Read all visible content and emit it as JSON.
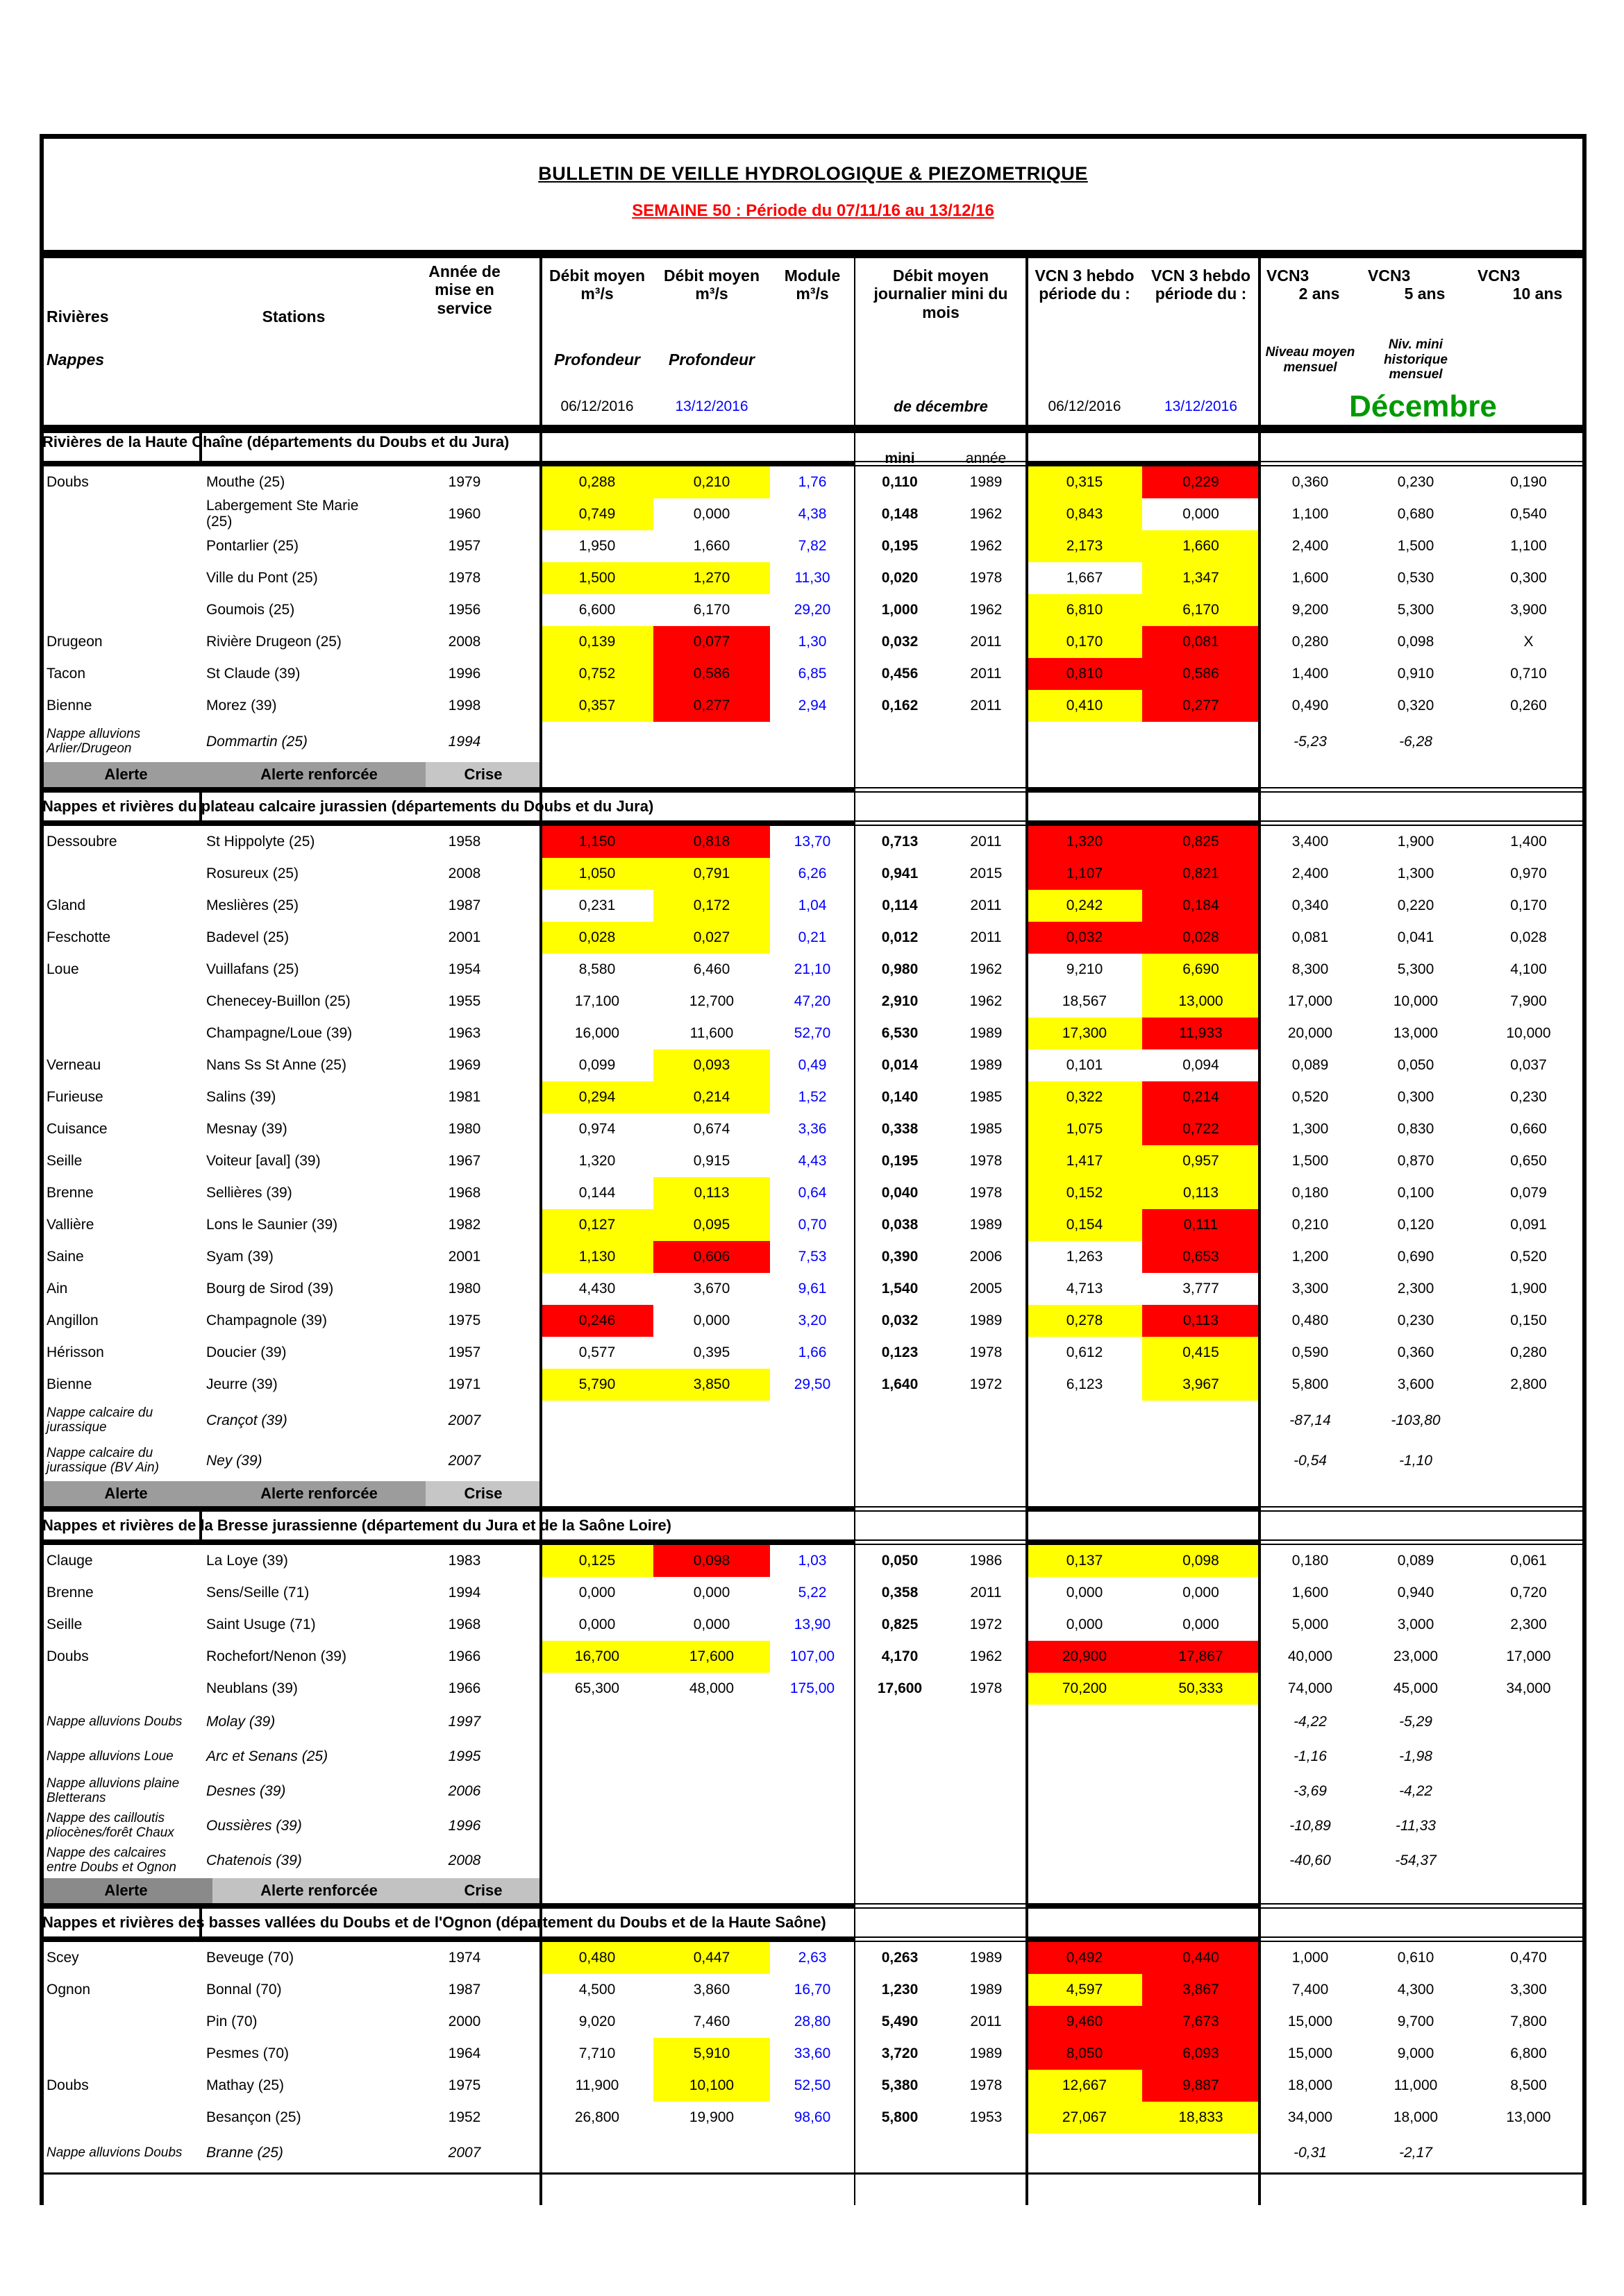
{
  "page": {
    "title": "BULLETIN DE VEILLE HYDROLOGIQUE & PIEZOMETRIQUE",
    "subtitle": "SEMAINE 50 : Période du 07/11/16 au 13/12/16"
  },
  "columns": {
    "rivieres": "Rivières",
    "stations": "Stations",
    "annee_service": "Année de mise en service",
    "debit_moyen": "Débit moyen",
    "unit_m3s": "m³/s",
    "module": "Module",
    "debit_journalier": "Débit moyen journalier mini du mois",
    "vcn3_hebdo": "VCN 3 hebdo",
    "periode_du": "période du :",
    "vcn3": "VCN3",
    "ans2": "2 ans",
    "ans5": "5 ans",
    "ans10": "10 ans",
    "nappes": "Nappes",
    "profondeur": "Profondeur",
    "niveau_moyen": "Niveau moyen mensuel",
    "niv_mini_historique": "Niv. mini historique mensuel",
    "date_sem1": "06/12/2016",
    "date_sem2": "13/12/2016",
    "de_decembre": "de décembre",
    "decembre": "Décembre",
    "mini": "mini",
    "annee": "année"
  },
  "legend": {
    "alerte": "Alerte",
    "renforcee": "Alerte renforcée",
    "crise": "Crise"
  },
  "colors": {
    "yellow": "#FFFF00",
    "red": "#FF0000",
    "blue": "#0000FF",
    "green": "#009900",
    "subtitle_red": "#FF0000"
  },
  "sections": [
    {
      "title": "Rivières de la Haute Chaîne (départements du Doubs et du Jura)",
      "mini_labels": true,
      "legend_bg": [
        "#9C9C9C",
        "#9C9C9C",
        "#C6C6C6"
      ],
      "has_legend": true,
      "rows": [
        {
          "r": "Doubs",
          "s": "Mouthe (25)",
          "a": "1979",
          "d1": "0,288",
          "d1c": "y",
          "d2": "0,210",
          "d2c": "y",
          "m": "1,76",
          "mi": "0,110",
          "ma": "1989",
          "v1": "0,315",
          "v1c": "y",
          "v2": "0,229",
          "v2c": "r",
          "y2": "0,360",
          "y5": "0,230",
          "y10": "0,190"
        },
        {
          "r": "",
          "s": "Labergement Ste Marie (25)",
          "a": "1960",
          "d1": "0,749",
          "d1c": "y",
          "d2": "0,000",
          "m": "4,38",
          "mi": "0,148",
          "ma": "1962",
          "v1": "0,843",
          "v1c": "y",
          "v2": "0,000",
          "y2": "1,100",
          "y5": "0,680",
          "y10": "0,540"
        },
        {
          "r": "",
          "s": "Pontarlier (25)",
          "a": "1957",
          "d1": "1,950",
          "d2": "1,660",
          "m": "7,82",
          "mi": "0,195",
          "ma": "1962",
          "v1": "2,173",
          "v1c": "y",
          "v2": "1,660",
          "v2c": "y",
          "y2": "2,400",
          "y5": "1,500",
          "y10": "1,100"
        },
        {
          "r": "",
          "s": "Ville du Pont (25)",
          "a": "1978",
          "d1": "1,500",
          "d1c": "y",
          "d2": "1,270",
          "d2c": "y",
          "m": "11,30",
          "mi": "0,020",
          "ma": "1978",
          "v1": "1,667",
          "v2": "1,347",
          "v2c": "y",
          "y2": "1,600",
          "y5": "0,530",
          "y10": "0,300"
        },
        {
          "r": "",
          "s": "Goumois (25)",
          "a": "1956",
          "d1": "6,600",
          "d2": "6,170",
          "m": "29,20",
          "mi": "1,000",
          "ma": "1962",
          "v1": "6,810",
          "v1c": "y",
          "v2": "6,170",
          "v2c": "y",
          "y2": "9,200",
          "y5": "5,300",
          "y10": "3,900"
        },
        {
          "r": "Drugeon",
          "s": "Rivière Drugeon (25)",
          "a": "2008",
          "d1": "0,139",
          "d1c": "y",
          "d2": "0,077",
          "d2c": "r",
          "m": "1,30",
          "mi": "0,032",
          "ma": "2011",
          "v1": "0,170",
          "v1c": "y",
          "v2": "0,081",
          "v2c": "r",
          "y2": "0,280",
          "y5": "0,098",
          "y10": "X"
        },
        {
          "r": "Tacon",
          "s": "St Claude (39)",
          "a": "1996",
          "d1": "0,752",
          "d1c": "y",
          "d2": "0,586",
          "d2c": "r",
          "m": "6,85",
          "mi": "0,456",
          "ma": "2011",
          "v1": "0,810",
          "v1c": "r",
          "v2": "0,586",
          "v2c": "r",
          "y2": "1,400",
          "y5": "0,910",
          "y10": "0,710"
        },
        {
          "r": "Bienne",
          "s": "Morez (39)",
          "a": "1998",
          "d1": "0,357",
          "d1c": "y",
          "d2": "0,277",
          "d2c": "r",
          "m": "2,94",
          "mi": "0,162",
          "ma": "2011",
          "v1": "0,410",
          "v1c": "y",
          "v2": "0,277",
          "v2c": "r",
          "y2": "0,490",
          "y5": "0,320",
          "y10": "0,260"
        },
        {
          "n": true,
          "r": "Nappe alluvions Arlier/Drugeon",
          "s": "Dommartin (25)",
          "a": "1994",
          "nm": "-5,23",
          "nh": "-6,28"
        }
      ]
    },
    {
      "title": "Nappes et rivières du plateau calcaire jurassien (départements du Doubs et du Jura)",
      "mini_labels": false,
      "legend_bg": [
        "#9C9C9C",
        "#9C9C9C",
        "#C6C6C6"
      ],
      "has_legend": true,
      "rows": [
        {
          "r": "Dessoubre",
          "s": "St Hippolyte (25)",
          "a": "1958",
          "d1": "1,150",
          "d1c": "r",
          "d2": "0,818",
          "d2c": "r",
          "m": "13,70",
          "mi": "0,713",
          "ma": "2011",
          "v1": "1,320",
          "v1c": "r",
          "v2": "0,825",
          "v2c": "r",
          "y2": "3,400",
          "y5": "1,900",
          "y10": "1,400"
        },
        {
          "r": "",
          "s": "Rosureux (25)",
          "a": "2008",
          "d1": "1,050",
          "d1c": "y",
          "d2": "0,791",
          "d2c": "y",
          "m": "6,26",
          "mi": "0,941",
          "ma": "2015",
          "v1": "1,107",
          "v1c": "r",
          "v2": "0,821",
          "v2c": "r",
          "y2": "2,400",
          "y5": "1,300",
          "y10": "0,970"
        },
        {
          "r": "Gland",
          "s": "Meslières (25)",
          "a": "1987",
          "d1": "0,231",
          "d2": "0,172",
          "d2c": "y",
          "m": "1,04",
          "mi": "0,114",
          "ma": "2011",
          "v1": "0,242",
          "v1c": "y",
          "v2": "0,184",
          "v2c": "r",
          "y2": "0,340",
          "y5": "0,220",
          "y10": "0,170"
        },
        {
          "r": "Feschotte",
          "s": "Badevel (25)",
          "a": "2001",
          "d1": "0,028",
          "d1c": "y",
          "d2": "0,027",
          "d2c": "y",
          "m": "0,21",
          "mi": "0,012",
          "ma": "2011",
          "v1": "0,032",
          "v1c": "r",
          "v2": "0,028",
          "v2c": "r",
          "y2": "0,081",
          "y5": "0,041",
          "y10": "0,028"
        },
        {
          "r": "Loue",
          "s": "Vuillafans (25)",
          "a": "1954",
          "d1": "8,580",
          "d2": "6,460",
          "m": "21,10",
          "mi": "0,980",
          "ma": "1962",
          "v1": "9,210",
          "v2": "6,690",
          "v2c": "y",
          "y2": "8,300",
          "y5": "5,300",
          "y10": "4,100"
        },
        {
          "r": "",
          "s": "Chenecey-Buillon (25)",
          "a": "1955",
          "d1": "17,100",
          "d2": "12,700",
          "m": "47,20",
          "mi": "2,910",
          "ma": "1962",
          "v1": "18,567",
          "v2": "13,000",
          "v2c": "y",
          "y2": "17,000",
          "y5": "10,000",
          "y10": "7,900"
        },
        {
          "r": "",
          "s": "Champagne/Loue (39)",
          "a": "1963",
          "d1": "16,000",
          "d2": "11,600",
          "m": "52,70",
          "mi": "6,530",
          "ma": "1989",
          "v1": "17,300",
          "v1c": "y",
          "v2": "11,933",
          "v2c": "r",
          "y2": "20,000",
          "y5": "13,000",
          "y10": "10,000"
        },
        {
          "r": "Verneau",
          "s": "Nans Ss St Anne (25)",
          "a": "1969",
          "d1": "0,099",
          "d2": "0,093",
          "d2c": "y",
          "m": "0,49",
          "mi": "0,014",
          "ma": "1989",
          "v1": "0,101",
          "v2": "0,094",
          "y2": "0,089",
          "y5": "0,050",
          "y10": "0,037"
        },
        {
          "r": "Furieuse",
          "s": "Salins (39)",
          "a": "1981",
          "d1": "0,294",
          "d1c": "y",
          "d2": "0,214",
          "d2c": "y",
          "m": "1,52",
          "mi": "0,140",
          "ma": "1985",
          "v1": "0,322",
          "v1c": "y",
          "v2": "0,214",
          "v2c": "r",
          "y2": "0,520",
          "y5": "0,300",
          "y10": "0,230"
        },
        {
          "r": "Cuisance",
          "s": "Mesnay (39)",
          "a": "1980",
          "d1": "0,974",
          "d2": "0,674",
          "m": "3,36",
          "mi": "0,338",
          "ma": "1985",
          "v1": "1,075",
          "v1c": "y",
          "v2": "0,722",
          "v2c": "r",
          "y2": "1,300",
          "y5": "0,830",
          "y10": "0,660"
        },
        {
          "r": "Seille",
          "s": "Voiteur [aval] (39)",
          "a": "1967",
          "d1": "1,320",
          "d2": "0,915",
          "m": "4,43",
          "mi": "0,195",
          "ma": "1978",
          "v1": "1,417",
          "v1c": "y",
          "v2": "0,957",
          "v2c": "y",
          "y2": "1,500",
          "y5": "0,870",
          "y10": "0,650"
        },
        {
          "r": "Brenne",
          "s": "Sellières (39)",
          "a": "1968",
          "d1": "0,144",
          "d2": "0,113",
          "d2c": "y",
          "m": "0,64",
          "mi": "0,040",
          "ma": "1978",
          "v1": "0,152",
          "v1c": "y",
          "v2": "0,113",
          "v2c": "y",
          "y2": "0,180",
          "y5": "0,100",
          "y10": "0,079"
        },
        {
          "r": "Vallière",
          "s": "Lons le Saunier (39)",
          "a": "1982",
          "d1": "0,127",
          "d1c": "y",
          "d2": "0,095",
          "d2c": "y",
          "m": "0,70",
          "mi": "0,038",
          "ma": "1989",
          "v1": "0,154",
          "v1c": "y",
          "v2": "0,111",
          "v2c": "r",
          "y2": "0,210",
          "y5": "0,120",
          "y10": "0,091"
        },
        {
          "r": "Saine",
          "s": "Syam (39)",
          "a": "2001",
          "d1": "1,130",
          "d1c": "y",
          "d2": "0,606",
          "d2c": "r",
          "m": "7,53",
          "mi": "0,390",
          "ma": "2006",
          "v1": "1,263",
          "v2": "0,653",
          "v2c": "r",
          "y2": "1,200",
          "y5": "0,690",
          "y10": "0,520"
        },
        {
          "r": "Ain",
          "s": "Bourg de Sirod (39)",
          "a": "1980",
          "d1": "4,430",
          "d2": "3,670",
          "m": "9,61",
          "mi": "1,540",
          "ma": "2005",
          "v1": "4,713",
          "v2": "3,777",
          "y2": "3,300",
          "y5": "2,300",
          "y10": "1,900"
        },
        {
          "r": "Angillon",
          "s": "Champagnole (39)",
          "a": "1975",
          "d1": "0,246",
          "d1c": "r",
          "d2": "0,000",
          "m": "3,20",
          "mi": "0,032",
          "ma": "1989",
          "v1": "0,278",
          "v1c": "y",
          "v2": "0,113",
          "v2c": "r",
          "y2": "0,480",
          "y5": "0,230",
          "y10": "0,150"
        },
        {
          "r": "Hérisson",
          "s": "Doucier (39)",
          "a": "1957",
          "d1": "0,577",
          "d2": "0,395",
          "m": "1,66",
          "mi": "0,123",
          "ma": "1978",
          "v1": "0,612",
          "v2": "0,415",
          "v2c": "y",
          "y2": "0,590",
          "y5": "0,360",
          "y10": "0,280"
        },
        {
          "r": "Bienne",
          "s": "Jeurre (39)",
          "a": "1971",
          "d1": "5,790",
          "d1c": "y",
          "d2": "3,850",
          "d2c": "y",
          "m": "29,50",
          "mi": "1,640",
          "ma": "1972",
          "v1": "6,123",
          "v2": "3,967",
          "v2c": "y",
          "y2": "5,800",
          "y5": "3,600",
          "y10": "2,800"
        },
        {
          "n": true,
          "r": "Nappe calcaire du jurassique",
          "s": "Crançot (39)",
          "a": "2007",
          "nm": "-87,14",
          "nh": "-103,80"
        },
        {
          "n": true,
          "r": "Nappe calcaire du jurassique (BV Ain)",
          "s": "Ney (39)",
          "a": "2007",
          "nm": "-0,54",
          "nh": "-1,10"
        }
      ]
    },
    {
      "title": "Nappes et rivières de la Bresse jurassienne (département du Jura et de la Saône Loire)",
      "mini_labels": false,
      "legend_bg": [
        "#8A8A8A",
        "#C2C2C2",
        "#C2C2C2"
      ],
      "has_legend": true,
      "rows": [
        {
          "r": "Clauge",
          "s": "La Loye (39)",
          "a": "1983",
          "d1": "0,125",
          "d1c": "y",
          "d2": "0,098",
          "d2c": "r",
          "m": "1,03",
          "mi": "0,050",
          "ma": "1986",
          "v1": "0,137",
          "v1c": "y",
          "v2": "0,098",
          "v2c": "y",
          "y2": "0,180",
          "y5": "0,089",
          "y10": "0,061"
        },
        {
          "r": "Brenne",
          "s": "Sens/Seille (71)",
          "a": "1994",
          "d1": "0,000",
          "d2": "0,000",
          "m": "5,22",
          "mi": "0,358",
          "ma": "2011",
          "v1": "0,000",
          "v2": "0,000",
          "y2": "1,600",
          "y5": "0,940",
          "y10": "0,720"
        },
        {
          "r": "Seille",
          "s": "Saint Usuge (71)",
          "a": "1968",
          "d1": "0,000",
          "d2": "0,000",
          "m": "13,90",
          "mi": "0,825",
          "ma": "1972",
          "v1": "0,000",
          "v2": "0,000",
          "y2": "5,000",
          "y5": "3,000",
          "y10": "2,300"
        },
        {
          "r": "Doubs",
          "s": "Rochefort/Nenon (39)",
          "a": "1966",
          "d1": "16,700",
          "d1c": "y",
          "d2": "17,600",
          "d2c": "y",
          "m": "107,00",
          "mi": "4,170",
          "ma": "1962",
          "v1": "20,900",
          "v1c": "r",
          "v2": "17,867",
          "v2c": "r",
          "y2": "40,000",
          "y5": "23,000",
          "y10": "17,000"
        },
        {
          "r": "",
          "s": "Neublans (39)",
          "a": "1966",
          "d1": "65,300",
          "d2": "48,000",
          "m": "175,00",
          "mi": "17,600",
          "ma": "1978",
          "v1": "70,200",
          "v1c": "y",
          "v2": "50,333",
          "v2c": "y",
          "y2": "74,000",
          "y5": "45,000",
          "y10": "34,000"
        },
        {
          "n": true,
          "r": "Nappe alluvions Doubs",
          "s": "Molay (39)",
          "a": "1997",
          "nm": "-4,22",
          "nh": "-5,29"
        },
        {
          "n": true,
          "r": "Nappe alluvions Loue",
          "s": "Arc et Senans (25)",
          "a": "1995",
          "nm": "-1,16",
          "nh": "-1,98"
        },
        {
          "n": true,
          "r": "Nappe alluvions plaine Bletterans",
          "s": "Desnes (39)",
          "a": "2006",
          "nm": "-3,69",
          "nh": "-4,22"
        },
        {
          "n": true,
          "r": "Nappe des cailloutis pliocènes/forêt Chaux",
          "s": "Oussières (39)",
          "a": "1996",
          "nm": "-10,89",
          "nh": "-11,33"
        },
        {
          "n": true,
          "r": "Nappe des calcaires entre Doubs et Ognon",
          "s": "Chatenois (39)",
          "a": "2008",
          "nm": "-40,60",
          "nh": "-54,37"
        }
      ]
    },
    {
      "title": "Nappes et rivières des basses vallées du Doubs et de l'Ognon (département du Doubs et de la Haute Saône)",
      "mini_labels": false,
      "legend_bg": null,
      "has_legend": false,
      "rows": [
        {
          "r": "Scey",
          "s": "Beveuge (70)",
          "a": "1974",
          "d1": "0,480",
          "d1c": "y",
          "d2": "0,447",
          "d2c": "y",
          "m": "2,63",
          "mi": "0,263",
          "ma": "1989",
          "v1": "0,492",
          "v1c": "r",
          "v2": "0,440",
          "v2c": "r",
          "y2": "1,000",
          "y5": "0,610",
          "y10": "0,470"
        },
        {
          "r": "Ognon",
          "s": "Bonnal (70)",
          "a": "1987",
          "d1": "4,500",
          "d2": "3,860",
          "m": "16,70",
          "mi": "1,230",
          "ma": "1989",
          "v1": "4,597",
          "v1c": "y",
          "v2": "3,867",
          "v2c": "r",
          "y2": "7,400",
          "y5": "4,300",
          "y10": "3,300"
        },
        {
          "r": "",
          "s": "Pin (70)",
          "a": "2000",
          "d1": "9,020",
          "d2": "7,460",
          "m": "28,80",
          "mi": "5,490",
          "ma": "2011",
          "v1": "9,460",
          "v1c": "r",
          "v2": "7,673",
          "v2c": "r",
          "y2": "15,000",
          "y5": "9,700",
          "y10": "7,800"
        },
        {
          "r": "",
          "s": "Pesmes (70)",
          "a": "1964",
          "d1": "7,710",
          "d2": "5,910",
          "d2c": "y",
          "m": "33,60",
          "mi": "3,720",
          "ma": "1989",
          "v1": "8,050",
          "v1c": "r",
          "v2": "6,093",
          "v2c": "r",
          "y2": "15,000",
          "y5": "9,000",
          "y10": "6,800"
        },
        {
          "r": "Doubs",
          "s": "Mathay (25)",
          "a": "1975",
          "d1": "11,900",
          "d2": "10,100",
          "d2c": "y",
          "m": "52,50",
          "mi": "5,380",
          "ma": "1978",
          "v1": "12,667",
          "v1c": "y",
          "v2": "9,887",
          "v2c": "r",
          "y2": "18,000",
          "y5": "11,000",
          "y10": "8,500"
        },
        {
          "r": "",
          "s": "Besançon (25)",
          "a": "1952",
          "d1": "26,800",
          "d2": "19,900",
          "m": "98,60",
          "mi": "5,800",
          "ma": "1953",
          "v1": "27,067",
          "v1c": "y",
          "v2": "18,833",
          "v2c": "y",
          "y2": "34,000",
          "y5": "18,000",
          "y10": "13,000"
        },
        {
          "n": true,
          "r": "Nappe alluvions Doubs",
          "s": "Branne (25)",
          "a": "2007",
          "nm": "-0,31",
          "nh": "-2,17"
        }
      ]
    }
  ]
}
